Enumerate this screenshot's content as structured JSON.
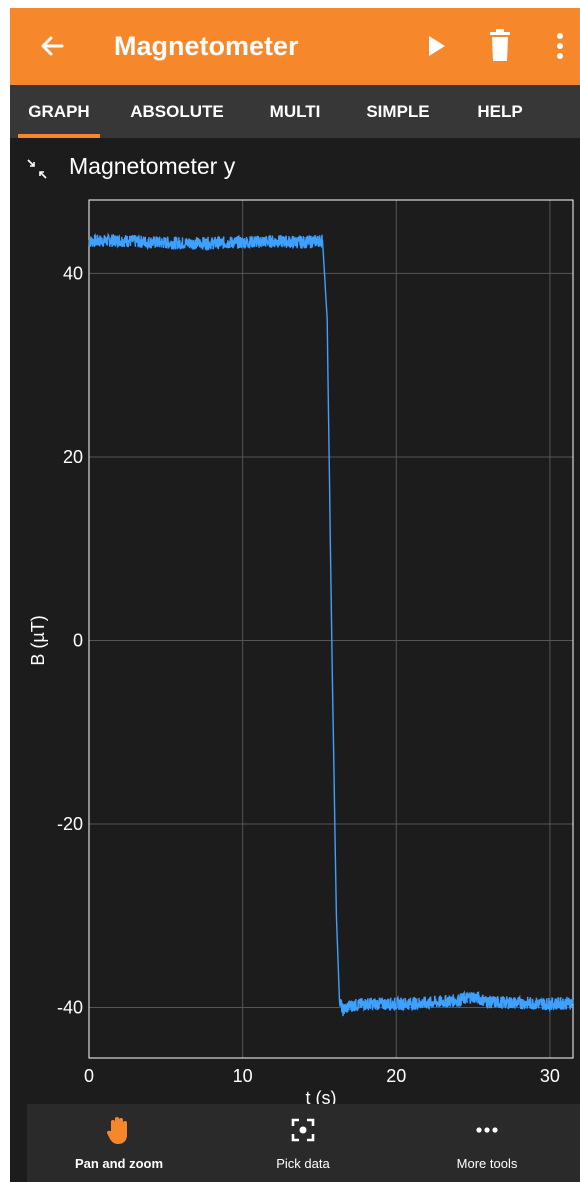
{
  "appbar": {
    "title": "Magnetometer",
    "accent_color": "#f6882b",
    "icons": [
      "back-arrow-icon",
      "play-icon",
      "trash-icon",
      "more-vert-icon"
    ]
  },
  "tabs": [
    {
      "label": "GRAPH",
      "active": true
    },
    {
      "label": "ABSOLUTE",
      "active": false
    },
    {
      "label": "MULTI",
      "active": false
    },
    {
      "label": "SIMPLE",
      "active": false
    },
    {
      "label": "HELP",
      "active": false
    }
  ],
  "graph": {
    "title": "Magnetometer y",
    "collapse_icon": "collapse-icon"
  },
  "chart_data": {
    "type": "line",
    "title": "",
    "xlabel": "t (s)",
    "ylabel": "B (µT)",
    "xlim": [
      0,
      31.5
    ],
    "ylim": [
      -45.5,
      48
    ],
    "xticks": [
      0,
      10,
      20,
      30
    ],
    "yticks": [
      -40,
      -20,
      0,
      20,
      40
    ],
    "grid": true,
    "line_color": "#3ea0ff",
    "series": [
      {
        "values_description_free": true,
        "x": [
          0,
          2,
          4,
          6,
          8,
          10,
          12,
          14,
          15.2,
          15.5,
          15.8,
          16.1,
          16.3,
          16.5,
          17,
          18,
          20,
          22,
          24,
          25,
          26,
          28,
          30,
          31.5
        ],
        "y": [
          43.5,
          43.6,
          43.4,
          43.3,
          43.3,
          43.4,
          43.5,
          43.4,
          43.6,
          35,
          0,
          -30,
          -39,
          -40.3,
          -39.8,
          -39.6,
          -39.6,
          -39.5,
          -39.2,
          -38.8,
          -39.4,
          -39.5,
          -39.6,
          -39.5
        ]
      }
    ]
  },
  "bottom_tools": [
    {
      "label": "Pan and zoom",
      "icon": "hand-icon",
      "active": true
    },
    {
      "label": "Pick data",
      "icon": "pick-data-icon",
      "active": false
    },
    {
      "label": "More tools",
      "icon": "more-horiz-icon",
      "active": false
    }
  ]
}
